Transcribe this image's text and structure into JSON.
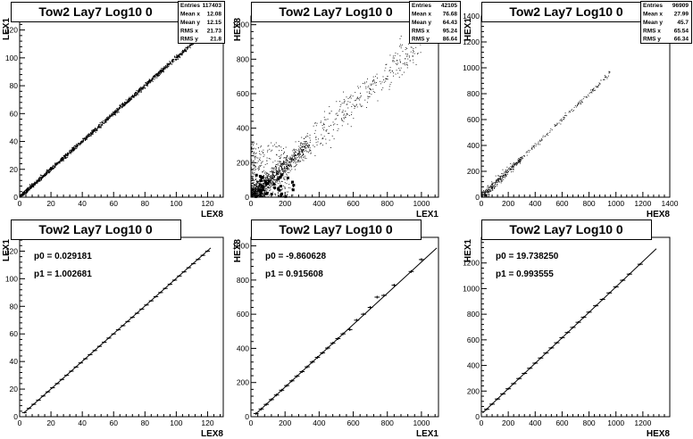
{
  "chart_data": [
    {
      "type": "scatter",
      "title": "Tow2 Lay7 Log10 0",
      "xlabel": "LEX8",
      "ylabel": "LEX1",
      "xlim": [
        0,
        130
      ],
      "ylim": [
        0,
        130
      ],
      "xticks": [
        0,
        20,
        40,
        60,
        80,
        100,
        120
      ],
      "yticks": [
        0,
        20,
        40,
        60,
        80,
        100,
        120
      ],
      "xticklabels": [
        "0",
        "20",
        "40",
        "60",
        "80",
        "100",
        "120"
      ],
      "yticklabels": [
        "0",
        "20",
        "40",
        "60",
        "80",
        "100",
        "120"
      ],
      "stats": [
        {
          "label": "Entries",
          "value": "117403"
        },
        {
          "label": "Mean x",
          "value": "12.08"
        },
        {
          "label": "Mean y",
          "value": "12.15"
        },
        {
          "label": "RMS x",
          "value": "21.73"
        },
        {
          "label": "RMS y",
          "value": "21.8"
        }
      ],
      "trend": {
        "slope": 1.0,
        "intercept": 0.0,
        "x_range": [
          0,
          122
        ],
        "spread": 0.8,
        "density": "heavy"
      }
    },
    {
      "type": "scatter",
      "title": "Tow2 Lay7 Log10 0",
      "xlabel": "LEX1",
      "ylabel": "HEX8",
      "xlim": [
        0,
        1100
      ],
      "ylim": [
        0,
        1050
      ],
      "xticks": [
        0,
        200,
        400,
        600,
        800,
        1000
      ],
      "yticks": [
        0,
        200,
        400,
        600,
        800,
        1000
      ],
      "xticklabels": [
        "0",
        "200",
        "400",
        "600",
        "800",
        "1000"
      ],
      "yticklabels": [
        "0",
        "200",
        "400",
        "600",
        "800",
        "1000"
      ],
      "stats": [
        {
          "label": "Entries",
          "value": "42105"
        },
        {
          "label": "Mean x",
          "value": "76.68"
        },
        {
          "label": "Mean y",
          "value": "64.43"
        },
        {
          "label": "RMS x",
          "value": "95.24"
        },
        {
          "label": "RMS y",
          "value": "86.64"
        }
      ],
      "trend": {
        "slope": 0.9,
        "intercept": 0.0,
        "x_range": [
          0,
          1050
        ],
        "spread": 30,
        "density": "scattered"
      }
    },
    {
      "type": "scatter",
      "title": "Tow2 Lay7 Log10 0",
      "xlabel": "HEX8",
      "ylabel": "HEX1",
      "xlim": [
        0,
        1400
      ],
      "ylim": [
        0,
        1400
      ],
      "xticks": [
        0,
        200,
        400,
        600,
        800,
        1000,
        1200,
        1400
      ],
      "yticks": [
        0,
        200,
        400,
        600,
        800,
        1000,
        1200,
        1400
      ],
      "xticklabels": [
        "0",
        "200",
        "400",
        "600",
        "800",
        "1000",
        "1200",
        "1400"
      ],
      "yticklabels": [
        "0",
        "200",
        "400",
        "600",
        "800",
        "1000",
        "1200",
        "1400"
      ],
      "stats": [
        {
          "label": "Entries",
          "value": "96909"
        },
        {
          "label": "Mean x",
          "value": "27.99"
        },
        {
          "label": "Mean y",
          "value": "45.7"
        },
        {
          "label": "RMS x",
          "value": "65.54"
        },
        {
          "label": "RMS y",
          "value": "66.34"
        }
      ],
      "trend": {
        "slope": 1.0,
        "intercept": 0.0,
        "x_range": [
          0,
          960
        ],
        "spread": 15,
        "density": "sparse"
      }
    },
    {
      "type": "line",
      "title": "Tow2 Lay7 Log10 0",
      "xlabel": "LEX8",
      "ylabel": "LEX1",
      "xlim": [
        0,
        130
      ],
      "ylim": [
        0,
        130
      ],
      "xticks": [
        0,
        20,
        40,
        60,
        80,
        100,
        120
      ],
      "yticks": [
        0,
        20,
        40,
        60,
        80,
        100,
        120
      ],
      "xticklabels": [
        "0",
        "20",
        "40",
        "60",
        "80",
        "100",
        "120"
      ],
      "yticklabels": [
        "0",
        "20",
        "40",
        "60",
        "80",
        "100",
        "120"
      ],
      "fit": {
        "p0_label": "p0 = 0.029181",
        "p1_label": "p1 = 1.002681",
        "p0": 0.029181,
        "p1": 1.002681,
        "x_range": [
          3,
          122
        ]
      },
      "profile_x": [
        3,
        6,
        9,
        12,
        15,
        18,
        21,
        24,
        27,
        30,
        33,
        36,
        39,
        42,
        45,
        48,
        51,
        54,
        57,
        60,
        63,
        66,
        69,
        72,
        75,
        78,
        81,
        84,
        87,
        90,
        93,
        96,
        99,
        102,
        105,
        108,
        111,
        114,
        117,
        120
      ],
      "profile_y": [
        3,
        6,
        9,
        12,
        15,
        18,
        21,
        24,
        27,
        30,
        33,
        36,
        39,
        42,
        45,
        48,
        51,
        54,
        57,
        60,
        63,
        66,
        69,
        72,
        75,
        78,
        81,
        84,
        87,
        90,
        93,
        96,
        99,
        102,
        105,
        108,
        111,
        114,
        117,
        120
      ],
      "profile_err": 0.6
    },
    {
      "type": "line",
      "title": "Tow2 Lay7 Log10 0",
      "xlabel": "LEX1",
      "ylabel": "HEX8",
      "xlim": [
        0,
        1100
      ],
      "ylim": [
        0,
        1050
      ],
      "xticks": [
        0,
        200,
        400,
        600,
        800,
        1000
      ],
      "yticks": [
        0,
        200,
        400,
        600,
        800,
        1000
      ],
      "xticklabels": [
        "0",
        "200",
        "400",
        "600",
        "800",
        "1000"
      ],
      "yticklabels": [
        "0",
        "200",
        "400",
        "600",
        "800",
        "1000"
      ],
      "fit": {
        "p0_label": "p0 = -9.860628",
        "p1_label": "p1 = 0.915608",
        "p0": -9.860628,
        "p1": 0.915608,
        "x_range": [
          30,
          1090
        ]
      },
      "profile_x": [
        30,
        60,
        90,
        120,
        150,
        180,
        210,
        240,
        270,
        300,
        330,
        360,
        390,
        420,
        450,
        480,
        510,
        540,
        580,
        620,
        660,
        700,
        740,
        780,
        840,
        940,
        1000
      ],
      "profile_y": [
        18,
        45,
        72,
        100,
        127,
        155,
        182,
        210,
        237,
        264,
        292,
        320,
        347,
        374,
        402,
        430,
        457,
        485,
        510,
        565,
        600,
        640,
        700,
        710,
        770,
        850,
        920
      ],
      "profile_err": 8
    },
    {
      "type": "line",
      "title": "Tow2 Lay7 Log10 0",
      "xlabel": "HEX8",
      "ylabel": "HEX1",
      "xlim": [
        0,
        1400
      ],
      "ylim": [
        0,
        1400
      ],
      "xticks": [
        0,
        200,
        400,
        600,
        800,
        1000,
        1200
      ],
      "yticks": [
        0,
        200,
        400,
        600,
        800,
        1000,
        1200
      ],
      "xticklabels": [
        "0",
        "200",
        "400",
        "600",
        "800",
        "1000",
        "1200"
      ],
      "yticklabels": [
        "0",
        "200",
        "400",
        "600",
        "800",
        "1000",
        "1200"
      ],
      "fit": {
        "p0_label": "p0 = 19.738250",
        "p1_label": "p1 = 0.993555",
        "p0": 19.73825,
        "p1": 0.993555,
        "x_range": [
          10,
          1300
        ]
      },
      "profile_x": [
        40,
        80,
        120,
        160,
        200,
        240,
        280,
        320,
        360,
        400,
        440,
        480,
        520,
        560,
        600,
        640,
        680,
        720,
        760,
        800,
        850,
        900,
        950,
        1000,
        1050,
        1100,
        1180
      ],
      "profile_y": [
        58,
        98,
        138,
        178,
        218,
        258,
        298,
        338,
        378,
        418,
        458,
        497,
        537,
        577,
        617,
        657,
        697,
        737,
        776,
        816,
        866,
        916,
        966,
        1013,
        1065,
        1113,
        1190
      ],
      "profile_err": 8
    }
  ]
}
